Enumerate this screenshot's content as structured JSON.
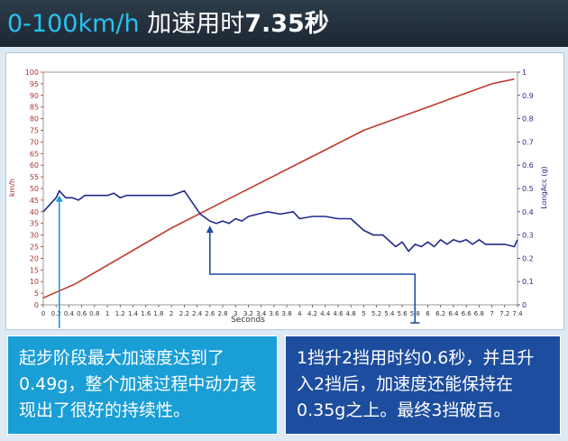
{
  "header": {
    "title_prefix": "0-100km/h",
    "title_middle": " 加速用时",
    "title_suffix": "7.35秒"
  },
  "chart_data": {
    "type": "line",
    "xlabel": "Seconds",
    "ylabel_left": "km/h",
    "ylabel_right": "LongAcc (g)",
    "xlim": [
      0,
      7.4
    ],
    "ylim_left": [
      0,
      100
    ],
    "ylim_right": [
      0,
      1
    ],
    "x_ticks": [
      "0",
      "0.2",
      "0.4",
      "0.6",
      "0.8",
      "1",
      "1.2",
      "1.4",
      "1.6",
      "1.8",
      "2",
      "2.2",
      "2.4",
      "2.6",
      "2.8",
      "3",
      "3.2",
      "3.4",
      "3.6",
      "3.8",
      "4",
      "4.2",
      "4.4",
      "4.6",
      "4.8",
      "5",
      "5.2",
      "5.4",
      "5.6",
      "5.8",
      "6",
      "6.2",
      "6.4",
      "6.6",
      "6.8",
      "7",
      "7.2",
      "7.4"
    ],
    "y_ticks_left": [
      "0",
      "5",
      "10",
      "15",
      "20",
      "25",
      "30",
      "35",
      "40",
      "45",
      "50",
      "55",
      "60",
      "65",
      "70",
      "75",
      "80",
      "85",
      "90",
      "95",
      "100"
    ],
    "y_ticks_right": [
      "0",
      "0.1",
      "0.2",
      "0.3",
      "0.4",
      "0.5",
      "0.6",
      "0.7",
      "0.8",
      "0.9",
      "1"
    ],
    "series": [
      {
        "axis": "left",
        "color": "#c0392b",
        "x": [
          0,
          0.5,
          1,
          1.5,
          2,
          2.5,
          3,
          3.5,
          4,
          4.5,
          5,
          5.5,
          6,
          6.5,
          7,
          7.35
        ],
        "values": [
          3,
          9,
          17,
          25,
          33,
          40,
          47,
          54,
          61,
          68,
          75,
          80,
          85,
          90,
          95,
          97
        ]
      },
      {
        "axis": "right",
        "color": "#1f2a8c",
        "x": [
          0,
          0.1,
          0.2,
          0.25,
          0.35,
          0.45,
          0.55,
          0.65,
          0.8,
          1.0,
          1.1,
          1.2,
          1.3,
          1.4,
          1.6,
          1.8,
          2.0,
          2.1,
          2.2,
          2.3,
          2.45,
          2.6,
          2.7,
          2.8,
          2.9,
          3.0,
          3.1,
          3.2,
          3.35,
          3.5,
          3.7,
          3.9,
          4.0,
          4.2,
          4.4,
          4.6,
          4.8,
          5.0,
          5.15,
          5.3,
          5.5,
          5.6,
          5.7,
          5.8,
          5.9,
          6.0,
          6.1,
          6.2,
          6.3,
          6.4,
          6.5,
          6.6,
          6.7,
          6.8,
          6.9,
          7.0,
          7.2,
          7.35,
          7.4
        ],
        "values": [
          0.4,
          0.43,
          0.46,
          0.49,
          0.46,
          0.46,
          0.45,
          0.47,
          0.47,
          0.47,
          0.48,
          0.46,
          0.47,
          0.47,
          0.47,
          0.47,
          0.47,
          0.48,
          0.49,
          0.45,
          0.39,
          0.36,
          0.35,
          0.36,
          0.35,
          0.37,
          0.36,
          0.38,
          0.39,
          0.4,
          0.39,
          0.4,
          0.37,
          0.38,
          0.38,
          0.37,
          0.37,
          0.32,
          0.3,
          0.3,
          0.25,
          0.27,
          0.23,
          0.26,
          0.25,
          0.27,
          0.25,
          0.28,
          0.26,
          0.28,
          0.27,
          0.28,
          0.26,
          0.28,
          0.26,
          0.26,
          0.26,
          0.25,
          0.28
        ]
      }
    ]
  },
  "notes": {
    "left": "起步阶段最大加速度达到了0.49g，整个加速过程中动力表现出了很好的持续性。",
    "right": "1挡升2挡用时约0.6秒，并且升入2挡后，加速度还能保持在0.35g之上。最终3挡破百。"
  }
}
